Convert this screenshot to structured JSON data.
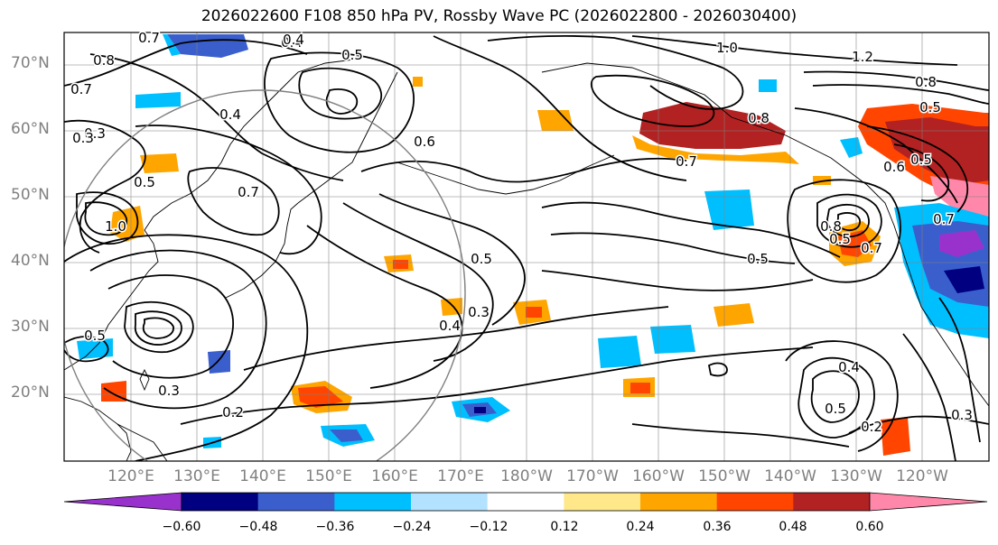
{
  "title": "2026022600 F108 850 hPa PV, Rossby Wave PC (2026022800 - 2026030400)",
  "lat_labels": [
    "70°N",
    "60°N",
    "50°N",
    "40°N",
    "30°N",
    "20°N"
  ],
  "lon_labels": [
    "120°E",
    "130°E",
    "140°E",
    "150°E",
    "160°E",
    "170°E",
    "180°W",
    "170°W",
    "160°W",
    "150°W",
    "140°W",
    "130°W",
    "120°W"
  ],
  "colorbar": {
    "ticks": [
      "−0.60",
      "−0.48",
      "−0.36",
      "−0.24",
      "−0.12",
      "0.12",
      "0.24",
      "0.36",
      "0.48",
      "0.60"
    ],
    "colors": [
      "#9932cc",
      "#000080",
      "#3a5fcd",
      "#00bfff",
      "#b2e2ff",
      "#ffffff",
      "#ffe88a",
      "#ffa500",
      "#ff4500",
      "#b22222",
      "#ff88aa"
    ]
  },
  "contour_labels": [
    "0.7",
    "0.4",
    "0.5",
    "0.8",
    "0.7",
    "0.4",
    "0.3",
    "0.5",
    "0.6",
    "0.7",
    "1.0",
    "0.4",
    "0.5",
    "0.5",
    "0.8",
    "0.3",
    "0.4",
    "0.3",
    "0.2",
    "0.3",
    "0.5",
    "1.0",
    "1.2",
    "0.8",
    "0.8",
    "0.7",
    "0.5",
    "0.5",
    "0.5",
    "0.7",
    "0.4",
    "0.5",
    "0.2",
    "0.3",
    "0.6",
    "0.7"
  ],
  "colors": {
    "frame": "#000000",
    "grid": "#808080",
    "label": "#808080"
  }
}
